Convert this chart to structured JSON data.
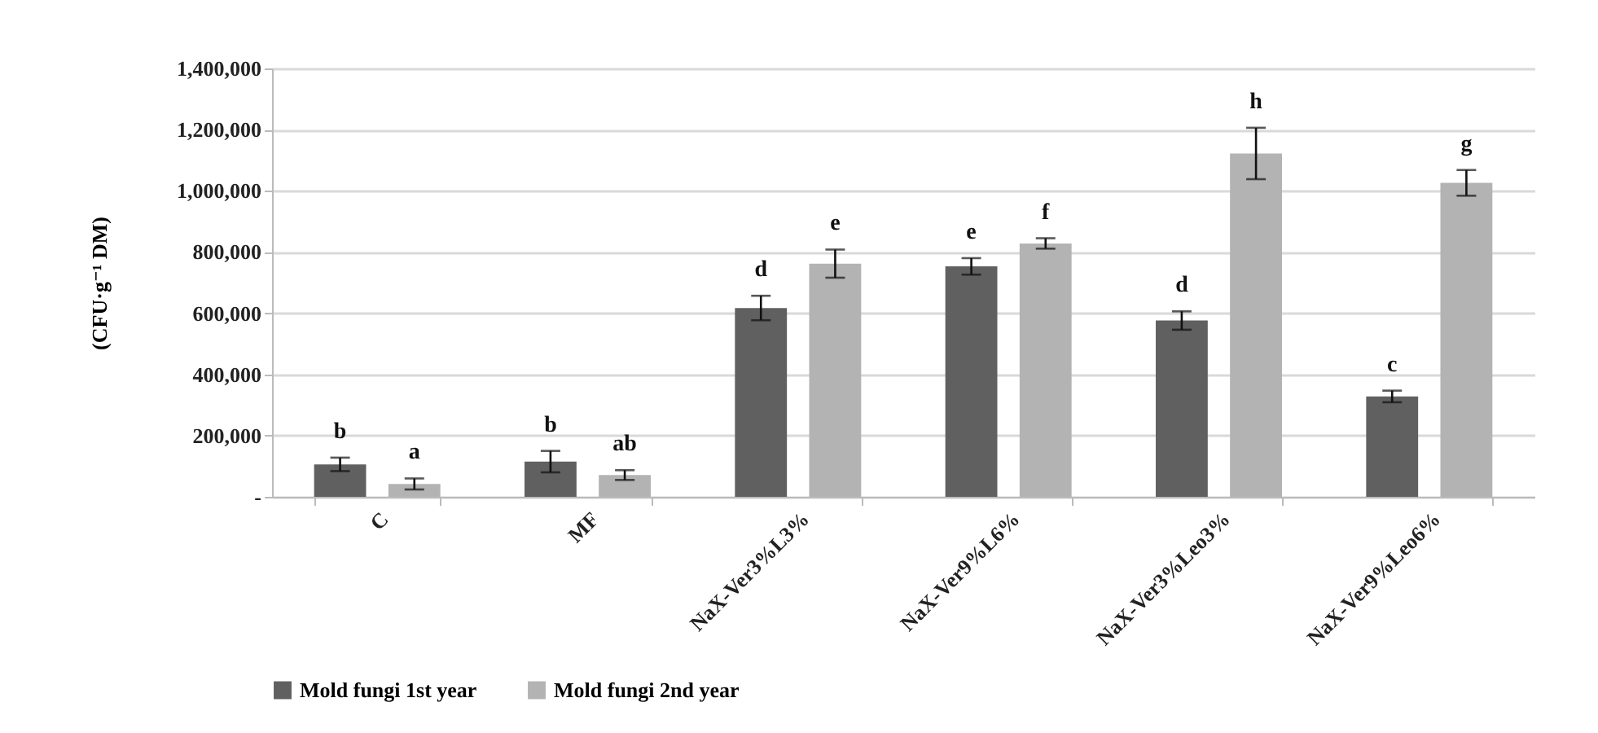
{
  "chart_data": {
    "type": "bar",
    "ylabel": "(CFU·g⁻¹ DM)",
    "categories": [
      "C",
      "MF",
      "NaX-Ver3%L3%",
      "NaX-Ver9%L6%",
      "NaX-Ver3%Leo3%",
      "NaX-Ver9%Leo6%"
    ],
    "series": [
      {
        "name": "Mold fungi 1st year",
        "color": "#606060",
        "values": [
          106000,
          115000,
          617000,
          753000,
          576000,
          328000
        ],
        "errors": [
          22000,
          35000,
          40000,
          27000,
          30000,
          19000
        ],
        "value_labels": [
          "b",
          "b",
          "d",
          "e",
          "d",
          "c"
        ]
      },
      {
        "name": "Mold fungi 2nd year",
        "color": "#b3b3b3",
        "values": [
          42000,
          71000,
          762000,
          828000,
          1122000,
          1026000
        ],
        "errors": [
          18000,
          16000,
          46000,
          17000,
          84000,
          42000
        ],
        "value_labels": [
          "a",
          "ab",
          "e",
          "f",
          "h",
          "g"
        ]
      }
    ],
    "ylim": [
      0,
      1400000
    ],
    "yticks": [
      {
        "value": 0,
        "label": "-"
      },
      {
        "value": 200000,
        "label": "200,000"
      },
      {
        "value": 400000,
        "label": "400,000"
      },
      {
        "value": 600000,
        "label": "600,000"
      },
      {
        "value": 800000,
        "label": "800,000"
      },
      {
        "value": 1000000,
        "label": "1,000,000"
      },
      {
        "value": 1200000,
        "label": "1,200,000"
      },
      {
        "value": 1400000,
        "label": "1,400,000"
      }
    ],
    "grid": "y",
    "legend": "bottom"
  }
}
